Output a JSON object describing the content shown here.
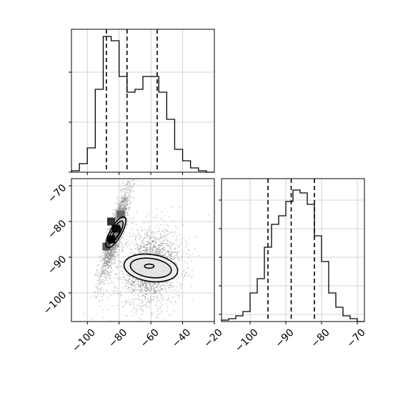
{
  "chart_data": [
    {
      "type": "histogram",
      "panel": "top-left",
      "x_range": [
        -110,
        -20
      ],
      "bins": [
        {
          "x0": -110,
          "x1": -105,
          "count": 1
        },
        {
          "x0": -105,
          "x1": -100,
          "count": 6
        },
        {
          "x0": -100,
          "x1": -95,
          "count": 17
        },
        {
          "x0": -95,
          "x1": -90,
          "count": 58
        },
        {
          "x0": -90,
          "x1": -85,
          "count": 95
        },
        {
          "x0": -85,
          "x1": -80,
          "count": 92
        },
        {
          "x0": -80,
          "x1": -75,
          "count": 67
        },
        {
          "x0": -75,
          "x1": -70,
          "count": 56
        },
        {
          "x0": -70,
          "x1": -65,
          "count": 58
        },
        {
          "x0": -65,
          "x1": -60,
          "count": 67
        },
        {
          "x0": -60,
          "x1": -55,
          "count": 67
        },
        {
          "x0": -55,
          "x1": -50,
          "count": 56
        },
        {
          "x0": -50,
          "x1": -45,
          "count": 37
        },
        {
          "x0": -45,
          "x1": -40,
          "count": 16
        },
        {
          "x0": -40,
          "x1": -35,
          "count": 8
        },
        {
          "x0": -35,
          "x1": -30,
          "count": 3
        },
        {
          "x0": -30,
          "x1": -25,
          "count": 1
        },
        {
          "x0": -25,
          "x1": -20,
          "count": 0
        }
      ],
      "y_range": [
        0,
        100
      ],
      "quantiles": [
        -88,
        -75,
        -56
      ],
      "grid": true
    },
    {
      "type": "scatter-density",
      "panel": "bottom-left",
      "x_range": [
        -110,
        -20
      ],
      "y_range": [
        -108,
        -68
      ],
      "x_ticks": [
        "−100",
        "−80",
        "−60",
        "−40",
        "−20"
      ],
      "x_tick_values": [
        -100,
        -80,
        -60,
        -40,
        -20
      ],
      "y_ticks": [
        "−70",
        "−80",
        "−90",
        "−100"
      ],
      "y_tick_values": [
        -70,
        -80,
        -90,
        -100
      ],
      "clusters": [
        {
          "center": [
            -82,
            -83
          ],
          "sx": 5,
          "sy": 7,
          "rho": 0.87,
          "n": 1600
        },
        {
          "center": [
            -60,
            -93
          ],
          "sx": 10,
          "sy": 5.5,
          "rho": 0.15,
          "n": 1800
        }
      ],
      "contours": [
        {
          "cx": -82,
          "cy": -83,
          "rx": 11,
          "ry": 3.6,
          "angle_deg": 60
        },
        {
          "cx": -82,
          "cy": -83,
          "rx": 8,
          "ry": 2.5,
          "angle_deg": 60
        },
        {
          "cx": -82,
          "cy": -83.5,
          "rx": 5,
          "ry": 1.5,
          "angle_deg": 60
        },
        {
          "cx": -60,
          "cy": -93,
          "rx": 17,
          "ry": 8.5,
          "angle_deg": -8
        },
        {
          "cx": -60,
          "cy": -93,
          "rx": 13,
          "ry": 6,
          "angle_deg": -8
        },
        {
          "cx": -61,
          "cy": -92.5,
          "rx": 3,
          "ry": 1.3,
          "angle_deg": 0
        }
      ],
      "grid": true
    },
    {
      "type": "histogram",
      "panel": "bottom-right",
      "x_range": [
        -108,
        -68
      ],
      "x_ticks": [
        "−100",
        "−90",
        "−80",
        "−70"
      ],
      "x_tick_values": [
        -100,
        -90,
        -80,
        -70
      ],
      "bins": [
        {
          "x0": -108,
          "x1": -106,
          "count": 1
        },
        {
          "x0": -106,
          "x1": -104,
          "count": 2
        },
        {
          "x0": -104,
          "x1": -102,
          "count": 4
        },
        {
          "x0": -102,
          "x1": -100,
          "count": 7
        },
        {
          "x0": -100,
          "x1": -98,
          "count": 20
        },
        {
          "x0": -98,
          "x1": -96,
          "count": 30
        },
        {
          "x0": -96,
          "x1": -94,
          "count": 52
        },
        {
          "x0": -94,
          "x1": -92,
          "count": 68
        },
        {
          "x0": -92,
          "x1": -90,
          "count": 74
        },
        {
          "x0": -90,
          "x1": -88,
          "count": 84
        },
        {
          "x0": -88,
          "x1": -86,
          "count": 92
        },
        {
          "x0": -86,
          "x1": -84,
          "count": 90
        },
        {
          "x0": -84,
          "x1": -82,
          "count": 82
        },
        {
          "x0": -82,
          "x1": -80,
          "count": 60
        },
        {
          "x0": -80,
          "x1": -78,
          "count": 42
        },
        {
          "x0": -78,
          "x1": -76,
          "count": 20
        },
        {
          "x0": -76,
          "x1": -74,
          "count": 10
        },
        {
          "x0": -74,
          "x1": -72,
          "count": 4
        },
        {
          "x0": -72,
          "x1": -70,
          "count": 2
        },
        {
          "x0": -70,
          "x1": -68,
          "count": 0
        }
      ],
      "y_range": [
        0,
        100
      ],
      "quantiles": [
        -95,
        -88.5,
        -82
      ],
      "grid": true
    }
  ]
}
